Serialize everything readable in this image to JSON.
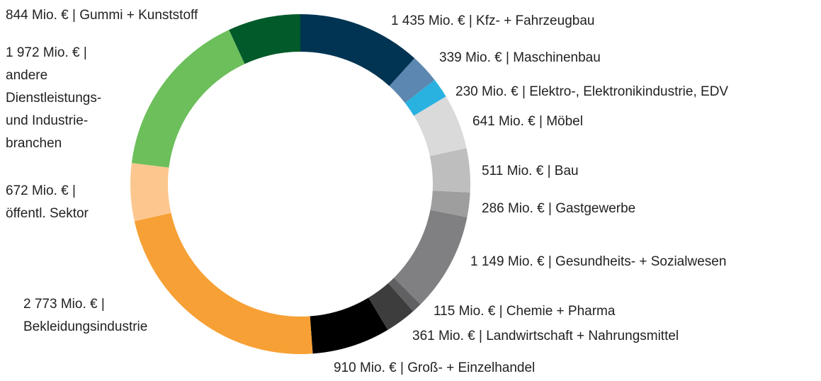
{
  "chart_data": {
    "type": "donut",
    "values": [
      1435,
      339,
      230,
      641,
      511,
      286,
      1149,
      115,
      361,
      910,
      2773,
      672,
      1972,
      844
    ],
    "value_labels": [
      [
        "1 435 Mio. € | Kfz- + Fahrzeugbau"
      ],
      [
        "339 Mio. € | Maschinenbau"
      ],
      [
        "230 Mio. € | Elektro-, Elektronikindustrie, EDV"
      ],
      [
        "641 Mio. € | Möbel"
      ],
      [
        "511 Mio. € | Bau"
      ],
      [
        "286 Mio. € | Gastgewerbe"
      ],
      [
        "1 149 Mio. € | Gesundheits- + Sozialwesen"
      ],
      [
        "115 Mio. € | Chemie + Pharma"
      ],
      [
        "361 Mio. € | Landwirtschaft + Nahrungsmittel"
      ],
      [
        "910 Mio. € | Groß- + Einzelhandel"
      ],
      [
        "2 773 Mio. € |",
        "Bekleidungsindustrie"
      ],
      [
        "672 Mio. € |",
        "öffentl. Sektor"
      ],
      [
        "1 972 Mio. € |",
        "andere",
        "Dienstleistungs-",
        "und Industrie-",
        "branchen"
      ],
      [
        "844 Mio. € | Gummi  + Kunststoff"
      ]
    ],
    "colors": [
      "#003452",
      "#5b87b0",
      "#29b1e0",
      "#dadadb",
      "#bebebf",
      "#9e9e9f",
      "#808082",
      "#616163",
      "#3d3d3d",
      "#000000",
      "#f7a035",
      "#fcc78e",
      "#6cbf5b",
      "#005a29"
    ]
  }
}
